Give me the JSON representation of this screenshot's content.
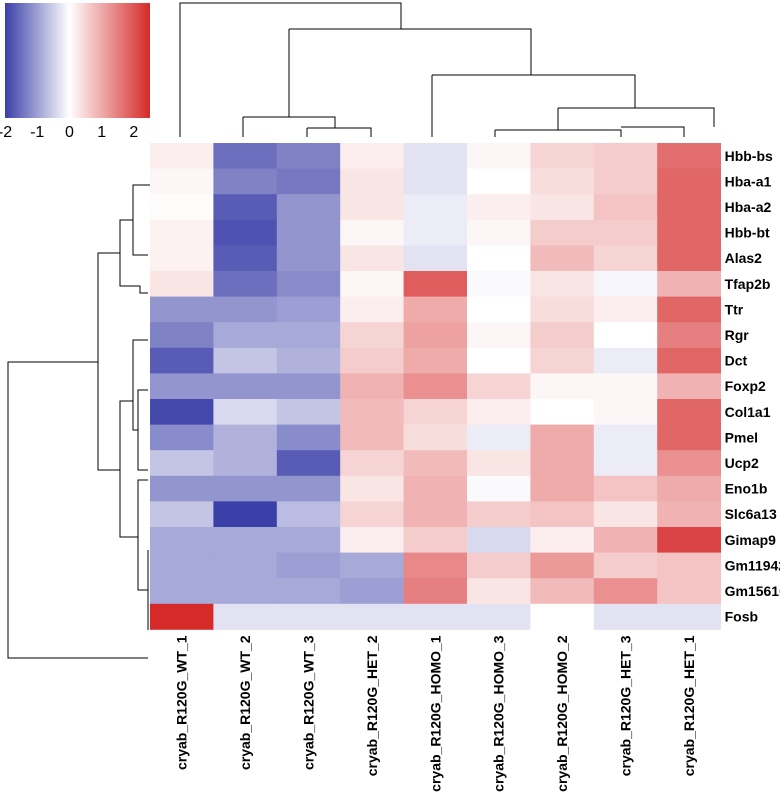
{
  "chart_data": {
    "type": "heatmap",
    "title": "",
    "colorbar": {
      "min": -2,
      "max": 2.5,
      "ticks": [
        -2,
        -1,
        0,
        1,
        2
      ],
      "tick_labels": [
        "-2",
        "-1",
        "0",
        "1",
        "2"
      ],
      "colors": {
        "low": "#3b3fa8",
        "mid": "#ffffff",
        "high": "#d62a2a"
      }
    },
    "columns": [
      "cryab_R120G_WT_1",
      "cryab_R120G_WT_2",
      "cryab_R120G_WT_3",
      "cryab_R120G_HET_2",
      "cryab_R120G_HOMO_1",
      "cryab_R120G_HOMO_3",
      "cryab_R120G_HOMO_2",
      "cryab_R120G_HET_3",
      "cryab_R120G_HET_1"
    ],
    "rows": [
      "Hbb-bs",
      "Hba-a1",
      "Hba-a2",
      "Hbb-bt",
      "Alas2",
      "Tfap2b",
      "Ttr",
      "Rgr",
      "Dct",
      "Foxp2",
      "Col1a1",
      "Pmel",
      "Ucp2",
      "Eno1b",
      "Slc6a13",
      "Gimap9",
      "Gm11942",
      "Gm15610",
      "Fosb"
    ],
    "values": [
      [
        0.2,
        -1.5,
        -1.3,
        0.2,
        -0.3,
        0.1,
        0.5,
        0.6,
        1.7
      ],
      [
        0.1,
        -1.3,
        -1.4,
        0.3,
        -0.3,
        0.0,
        0.4,
        0.6,
        1.8
      ],
      [
        0.05,
        -1.7,
        -1.1,
        0.3,
        -0.2,
        0.2,
        0.3,
        0.7,
        1.8
      ],
      [
        0.15,
        -1.8,
        -1.1,
        0.1,
        -0.2,
        0.1,
        0.6,
        0.6,
        1.8
      ],
      [
        0.15,
        -1.7,
        -1.1,
        0.3,
        -0.3,
        0.0,
        0.8,
        0.5,
        1.8
      ],
      [
        0.3,
        -1.5,
        -1.2,
        0.1,
        1.9,
        -0.05,
        0.3,
        -0.1,
        0.9
      ],
      [
        -1.1,
        -1.1,
        -1.0,
        0.2,
        1.0,
        0.0,
        0.4,
        0.2,
        1.8
      ],
      [
        -1.3,
        -0.9,
        -0.9,
        0.5,
        1.1,
        0.1,
        0.6,
        0.0,
        1.5
      ],
      [
        -1.7,
        -0.6,
        -0.8,
        0.6,
        1.0,
        0.0,
        0.5,
        -0.2,
        1.8
      ],
      [
        -1.1,
        -1.1,
        -1.1,
        0.9,
        1.3,
        0.5,
        0.1,
        0.1,
        0.9
      ],
      [
        -1.9,
        -0.4,
        -0.6,
        0.8,
        0.5,
        0.2,
        0.0,
        0.1,
        1.8
      ],
      [
        -1.2,
        -0.8,
        -1.2,
        0.8,
        0.4,
        -0.2,
        1.0,
        -0.2,
        1.8
      ],
      [
        -0.6,
        -0.8,
        -1.7,
        0.5,
        0.8,
        0.3,
        1.0,
        -0.2,
        1.3
      ],
      [
        -1.1,
        -1.1,
        -1.1,
        0.3,
        0.9,
        -0.05,
        1.0,
        0.7,
        1.0
      ],
      [
        -0.6,
        -2.0,
        -0.7,
        0.5,
        0.9,
        0.6,
        0.7,
        0.3,
        0.9
      ],
      [
        -0.9,
        -0.9,
        -0.9,
        0.2,
        0.6,
        -0.4,
        0.2,
        0.9,
        2.2
      ],
      [
        -0.9,
        -0.9,
        -1.0,
        -0.9,
        1.4,
        0.6,
        1.2,
        0.6,
        0.7
      ],
      [
        -0.9,
        -0.9,
        -0.9,
        -1.0,
        1.5,
        0.3,
        0.8,
        1.3,
        0.7
      ],
      [
        2.5,
        -0.3,
        -0.3,
        -0.3,
        -0.3,
        -0.3,
        0.0,
        -0.3,
        -0.3
      ]
    ],
    "row_dendrogram": true,
    "column_dendrogram": true
  }
}
